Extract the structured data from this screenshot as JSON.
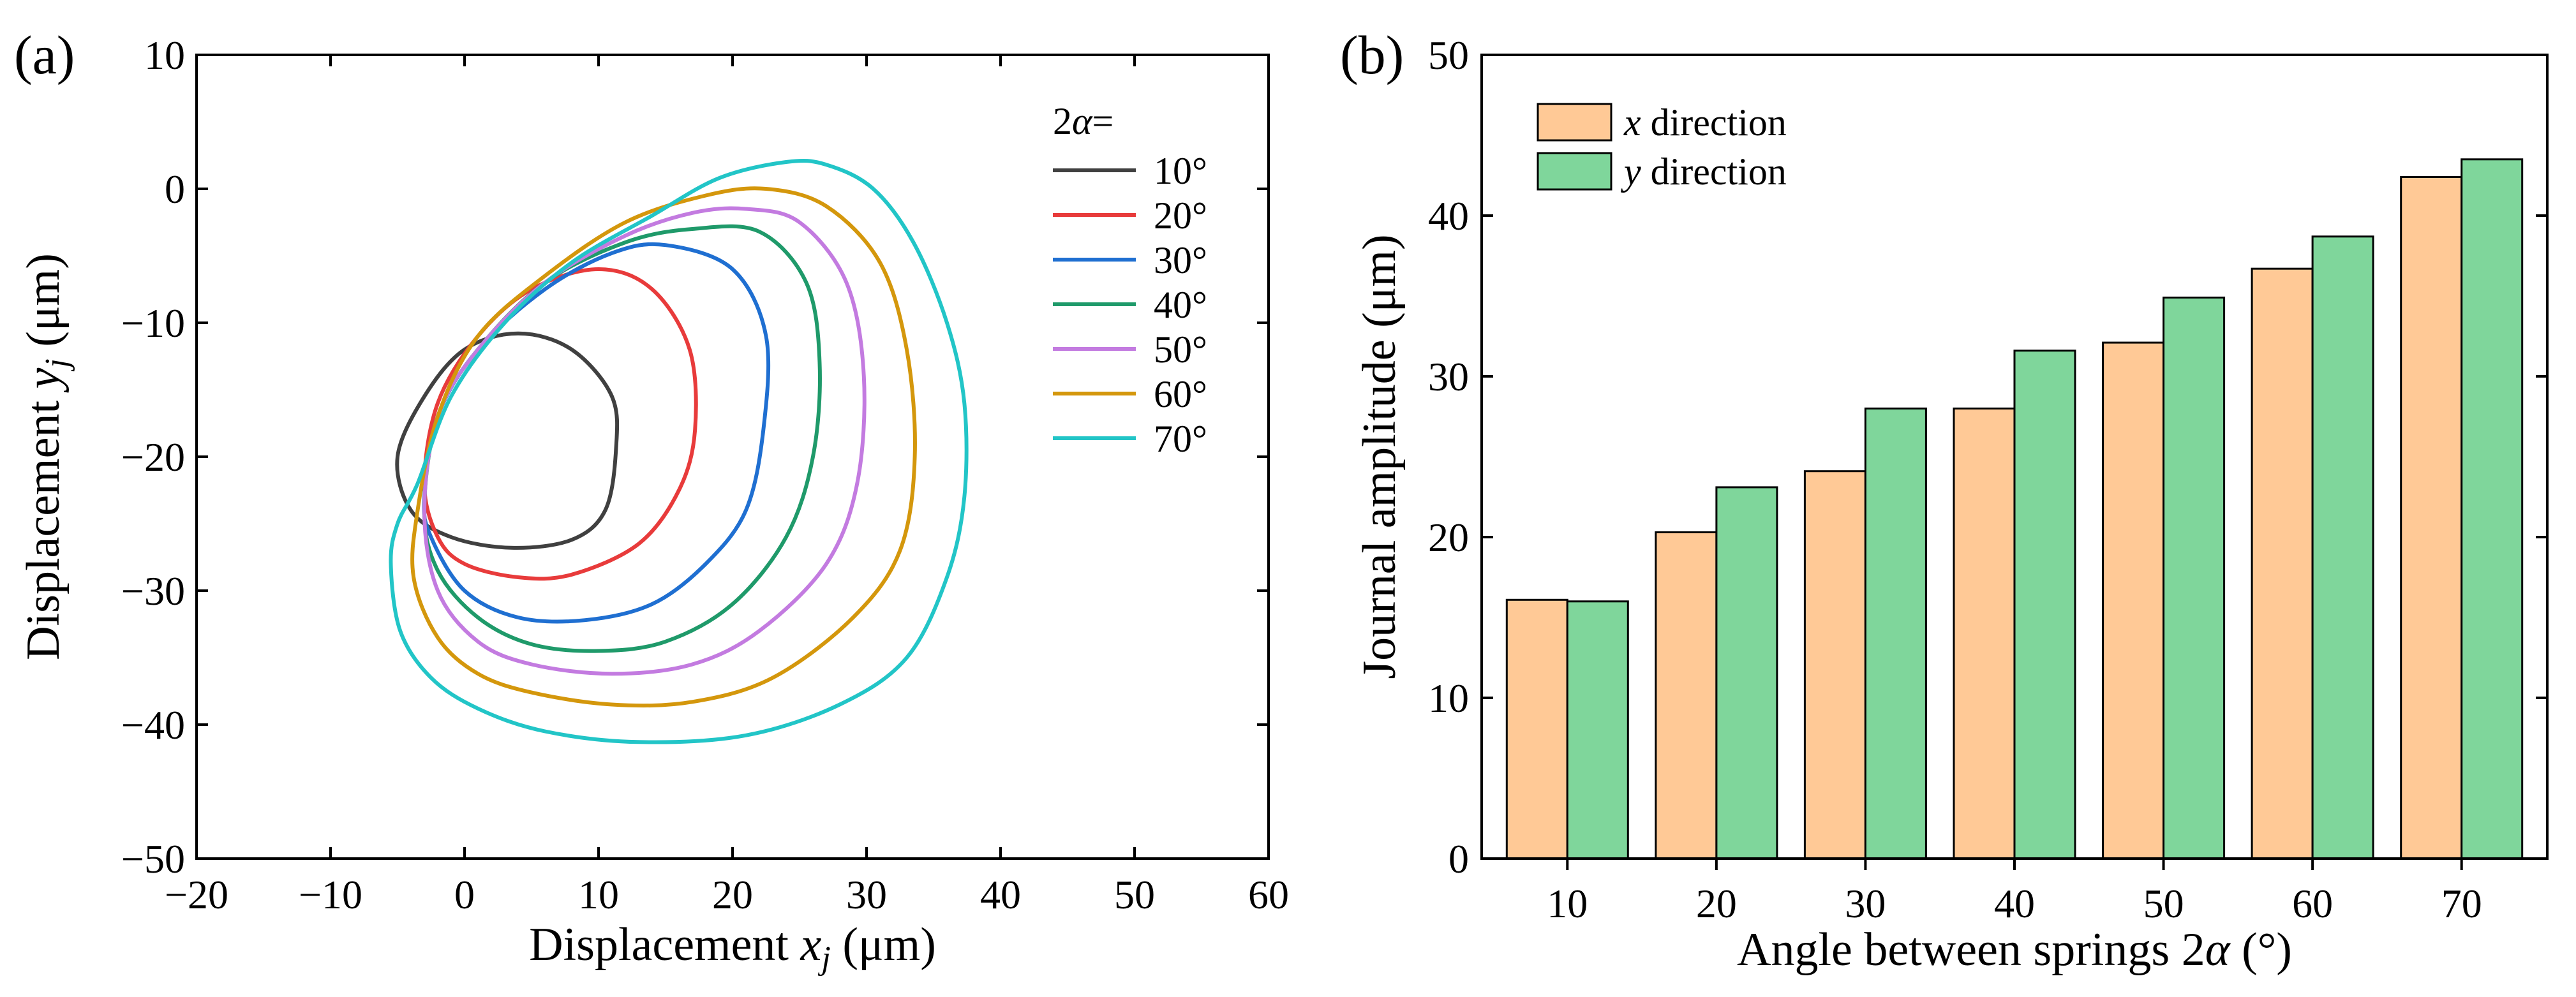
{
  "chart_data": [
    {
      "panel": "(a)",
      "type": "line",
      "xlabel_prefix": "Displacement ",
      "xlabel_var": "x",
      "xlabel_sub": "j",
      "xlabel_unit": " (μm)",
      "ylabel_prefix": "Displacement ",
      "ylabel_var": "y",
      "ylabel_sub": "j",
      "ylabel_unit": " (μm)",
      "xlim": [
        -20,
        60
      ],
      "ylim": [
        -50,
        10
      ],
      "xticks": [
        -20,
        -10,
        0,
        10,
        20,
        30,
        40,
        50,
        60
      ],
      "yticks": [
        10,
        0,
        -10,
        -20,
        -30,
        -40,
        -50
      ],
      "xtick_labels": [
        "−20",
        "−10",
        "0",
        "10",
        "20",
        "30",
        "40",
        "50",
        "60"
      ],
      "ytick_labels": [
        "10",
        "0",
        "−10",
        "−20",
        "−30",
        "−40",
        "−50"
      ],
      "legend_title_num": "2",
      "legend_title_var": "α",
      "legend_title_eq": "=",
      "series": [
        {
          "name": "10°",
          "color": "#404040",
          "points": [
            [
              4,
              -10.8
            ],
            [
              8,
              -12
            ],
            [
              11,
              -15.5
            ],
            [
              11.3,
              -19.5
            ],
            [
              10.5,
              -24
            ],
            [
              8,
              -26.2
            ],
            [
              3.5,
              -26.8
            ],
            [
              -1,
              -26
            ],
            [
              -4,
              -24
            ],
            [
              -5,
              -20
            ],
            [
              -3,
              -15.5
            ],
            [
              0,
              -12
            ]
          ]
        },
        {
          "name": "20°",
          "color": "#e83b3b",
          "points": [
            [
              -3,
              -22
            ],
            [
              -2,
              -16
            ],
            [
              1,
              -11
            ],
            [
              5,
              -7.5
            ],
            [
              10,
              -6
            ],
            [
              14,
              -7.5
            ],
            [
              16.8,
              -12
            ],
            [
              17.2,
              -18
            ],
            [
              16,
              -22.5
            ],
            [
              13,
              -26.5
            ],
            [
              8,
              -28.8
            ],
            [
              4,
              -29
            ],
            [
              0,
              -28
            ],
            [
              -2,
              -26
            ]
          ]
        },
        {
          "name": "30°",
          "color": "#1f6fd1",
          "points": [
            [
              -3,
              -23
            ],
            [
              -2,
              -17
            ],
            [
              1,
              -12
            ],
            [
              6,
              -7.5
            ],
            [
              11,
              -4.8
            ],
            [
              15,
              -4.2
            ],
            [
              20,
              -6
            ],
            [
              22.5,
              -11
            ],
            [
              22.3,
              -18
            ],
            [
              21,
              -24
            ],
            [
              18,
              -28
            ],
            [
              14,
              -31
            ],
            [
              9,
              -32.2
            ],
            [
              4,
              -32
            ],
            [
              0,
              -30
            ],
            [
              -2.5,
              -26
            ]
          ]
        },
        {
          "name": "40°",
          "color": "#1f9a6a",
          "points": [
            [
              -3,
              -24
            ],
            [
              -2,
              -17
            ],
            [
              1,
              -12
            ],
            [
              6,
              -7
            ],
            [
              12,
              -4
            ],
            [
              17,
              -3
            ],
            [
              22,
              -3.2
            ],
            [
              25.5,
              -7
            ],
            [
              26.5,
              -13
            ],
            [
              26,
              -20
            ],
            [
              24,
              -26
            ],
            [
              20,
              -31
            ],
            [
              15,
              -33.8
            ],
            [
              10,
              -34.5
            ],
            [
              5,
              -34
            ],
            [
              1,
              -32
            ],
            [
              -2,
              -28.5
            ]
          ]
        },
        {
          "name": "50°",
          "color": "#c37be0",
          "points": [
            [
              -3,
              -24
            ],
            [
              -2,
              -17
            ],
            [
              1,
              -12
            ],
            [
              6,
              -7
            ],
            [
              12,
              -3.5
            ],
            [
              17,
              -1.8
            ],
            [
              21,
              -1.5
            ],
            [
              25,
              -2.5
            ],
            [
              28.5,
              -7
            ],
            [
              29.8,
              -14
            ],
            [
              29.3,
              -22
            ],
            [
              27,
              -28
            ],
            [
              22,
              -33
            ],
            [
              17,
              -35.5
            ],
            [
              11,
              -36.2
            ],
            [
              5,
              -35.5
            ],
            [
              1,
              -33.8
            ],
            [
              -2,
              -30
            ]
          ]
        },
        {
          "name": "60°",
          "color": "#d4970c",
          "points": [
            [
              -3.5,
              -24
            ],
            [
              -2,
              -17
            ],
            [
              1,
              -11
            ],
            [
              6,
              -6.5
            ],
            [
              12,
              -2.5
            ],
            [
              18,
              -0.5
            ],
            [
              22.5,
              0
            ],
            [
              27,
              -1.3
            ],
            [
              31,
              -5.5
            ],
            [
              33,
              -12
            ],
            [
              33.6,
              -20
            ],
            [
              32.5,
              -27
            ],
            [
              29,
              -32
            ],
            [
              23,
              -36.5
            ],
            [
              17,
              -38.3
            ],
            [
              11,
              -38.5
            ],
            [
              5,
              -37.6
            ],
            [
              1,
              -36.2
            ],
            [
              -2,
              -33.5
            ],
            [
              -3.8,
              -29
            ]
          ]
        },
        {
          "name": "70°",
          "color": "#22c5c7",
          "points": [
            [
              -3.5,
              -22
            ],
            [
              -1,
              -15.5
            ],
            [
              3,
              -10
            ],
            [
              8,
              -5.5
            ],
            [
              14,
              -2
            ],
            [
              19,
              0.8
            ],
            [
              24,
              2
            ],
            [
              27,
              1.8
            ],
            [
              30.5,
              0
            ],
            [
              33.5,
              -4
            ],
            [
              36,
              -10
            ],
            [
              37.3,
              -16
            ],
            [
              37.3,
              -23
            ],
            [
              36,
              -29
            ],
            [
              33,
              -35
            ],
            [
              28,
              -38.5
            ],
            [
              21,
              -40.8
            ],
            [
              13,
              -41.3
            ],
            [
              6,
              -40.5
            ],
            [
              1,
              -38.8
            ],
            [
              -2.5,
              -36.5
            ],
            [
              -4.8,
              -33
            ],
            [
              -5.5,
              -28
            ],
            [
              -5,
              -25
            ]
          ]
        }
      ]
    },
    {
      "panel": "(b)",
      "type": "bar",
      "xlabel_prefix": "Angle between springs 2",
      "xlabel_var": "α",
      "xlabel_unit": " (°)",
      "ylabel": "Journal amplitude (μm)",
      "ylim": [
        0,
        50
      ],
      "yticks": [
        0,
        10,
        20,
        30,
        40,
        50
      ],
      "categories": [
        "10",
        "20",
        "30",
        "40",
        "50",
        "60",
        "70"
      ],
      "series": [
        {
          "var": "x",
          "label": " direction",
          "color": "#ffc996",
          "values": [
            16.1,
            20.3,
            24.1,
            28.0,
            32.1,
            36.7,
            42.4
          ]
        },
        {
          "var": "y",
          "label": " direction",
          "color": "#7fd69b",
          "values": [
            16.0,
            23.1,
            28.0,
            31.6,
            34.9,
            38.7,
            43.5
          ]
        }
      ]
    }
  ]
}
